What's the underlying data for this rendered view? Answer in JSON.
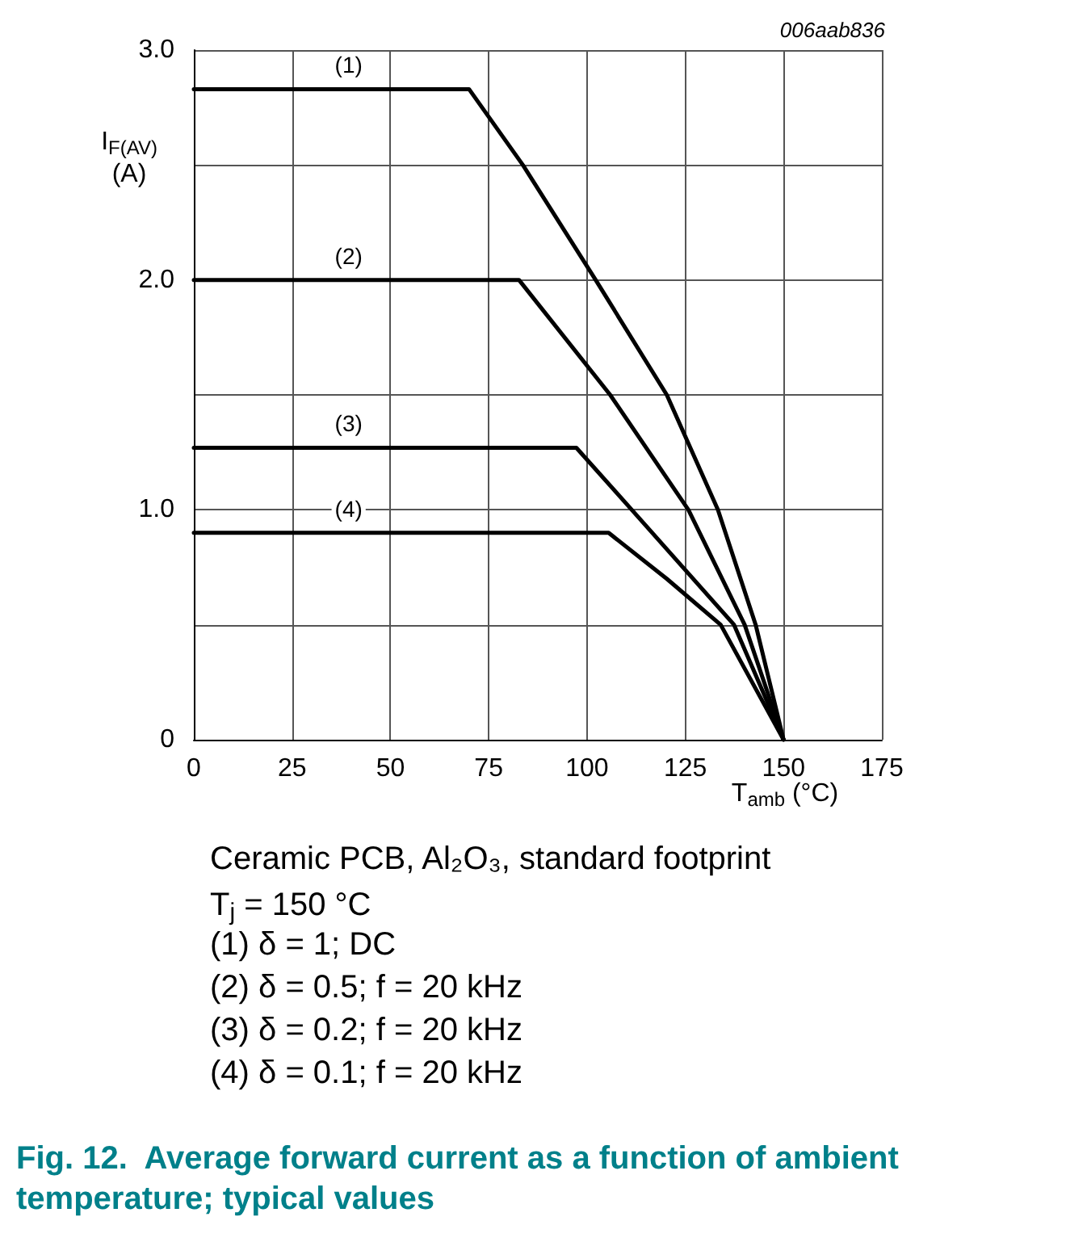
{
  "chart_data": {
    "type": "line",
    "title": "Fig. 12.  Average forward current as a function of ambient temperature; typical values",
    "xlabel": "T$_{amb}$ (°C)",
    "ylabel": "I$_{F(AV)}$ (A)",
    "xlim": [
      0,
      175
    ],
    "xticks": [
      0,
      25,
      50,
      75,
      100,
      125,
      150,
      175
    ],
    "ylim": [
      0,
      3.0
    ],
    "yticks": [
      {
        "value": 0,
        "label": "0"
      },
      {
        "value": 0.5,
        "label": null
      },
      {
        "value": 1,
        "label": "1.0"
      },
      {
        "value": 1.5,
        "label": null
      },
      {
        "value": 2,
        "label": "2.0"
      },
      {
        "value": 2.5,
        "label": null
      },
      {
        "value": 3,
        "label": "3.0"
      }
    ],
    "grid": true,
    "legend": false,
    "marker": "none",
    "line_style": "solid",
    "series": [
      {
        "name": "(1)",
        "color": "#000000",
        "x": [
          0,
          70,
          83.7,
          102.2,
          120.3,
          133.3,
          142.9,
          150
        ],
        "values": [
          2.83,
          2.83,
          2.5,
          2.0,
          1.5,
          1.0,
          0.5,
          0
        ]
      },
      {
        "name": "(2)",
        "color": "#000000",
        "x": [
          0,
          82.7,
          105.9,
          125.8,
          140.1,
          150
        ],
        "values": [
          2.0,
          2.0,
          1.5,
          1.0,
          0.5,
          0
        ]
      },
      {
        "name": "(3)",
        "color": "#000000",
        "x": [
          0,
          97.3,
          111.4,
          137.4,
          150
        ],
        "values": [
          1.27,
          1.27,
          1.0,
          0.5,
          0
        ]
      },
      {
        "name": "(4)",
        "color": "#000000",
        "x": [
          0,
          105.5,
          120.3,
          134.0,
          150
        ],
        "values": [
          0.9,
          0.9,
          0.7,
          0.5,
          0
        ]
      }
    ],
    "annotations": [
      "006aab836",
      "Ceramic PCB, Al₂O₃, standard footprint",
      "T$_{j}$ = 150 °C",
      "(1) δ = 1; DC",
      "(2) δ = 0.5; f = 20 kHz",
      "(3) δ = 0.2; f = 20 kHz",
      "(4) δ = 0.1; f = 20 kHz"
    ]
  }
}
